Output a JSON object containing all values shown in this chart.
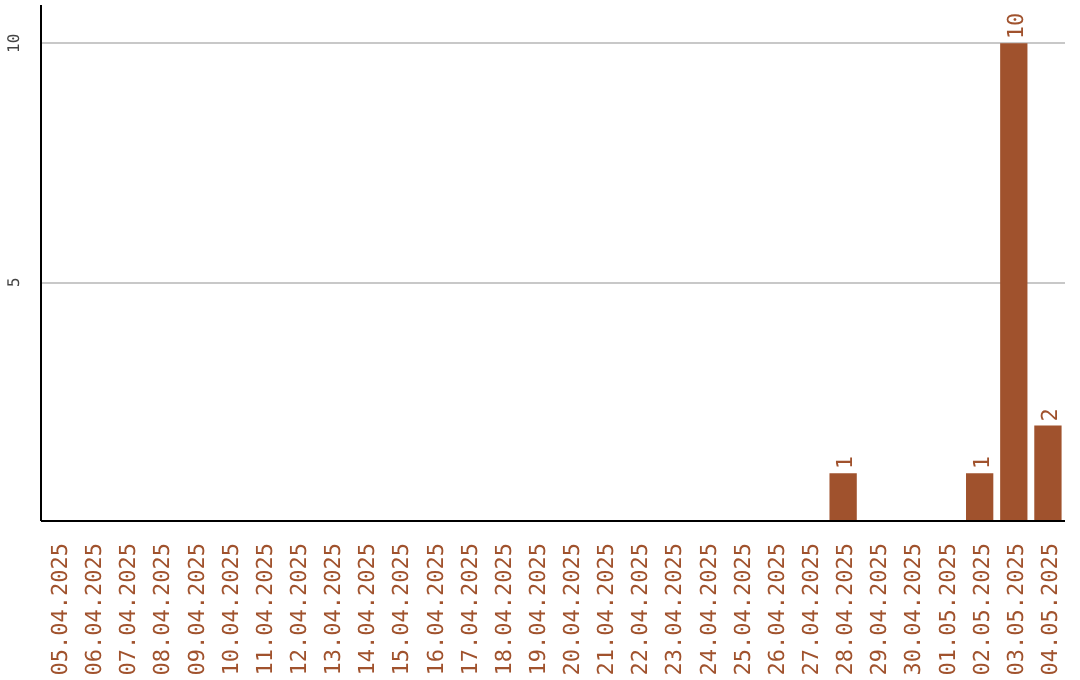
{
  "chart_data": {
    "type": "bar",
    "categories": [
      "05.04.2025",
      "06.04.2025",
      "07.04.2025",
      "08.04.2025",
      "09.04.2025",
      "10.04.2025",
      "11.04.2025",
      "12.04.2025",
      "13.04.2025",
      "14.04.2025",
      "15.04.2025",
      "16.04.2025",
      "17.04.2025",
      "18.04.2025",
      "19.04.2025",
      "20.04.2025",
      "21.04.2025",
      "22.04.2025",
      "23.04.2025",
      "24.04.2025",
      "25.04.2025",
      "26.04.2025",
      "27.04.2025",
      "28.04.2025",
      "29.04.2025",
      "30.04.2025",
      "01.05.2025",
      "02.05.2025",
      "03.05.2025",
      "04.05.2025"
    ],
    "values": [
      0,
      0,
      0,
      0,
      0,
      0,
      0,
      0,
      0,
      0,
      0,
      0,
      0,
      0,
      0,
      0,
      0,
      0,
      0,
      0,
      0,
      0,
      0,
      1,
      0,
      0,
      0,
      1,
      10,
      2
    ],
    "value_labels": [
      null,
      null,
      null,
      null,
      null,
      null,
      null,
      null,
      null,
      null,
      null,
      null,
      null,
      null,
      null,
      null,
      null,
      null,
      null,
      null,
      null,
      null,
      null,
      "1",
      null,
      null,
      null,
      "1",
      "10",
      "2"
    ],
    "color": "#a0522d",
    "ylim": [
      0,
      10.8
    ],
    "yticks": [
      5,
      10
    ],
    "grid": "y"
  }
}
